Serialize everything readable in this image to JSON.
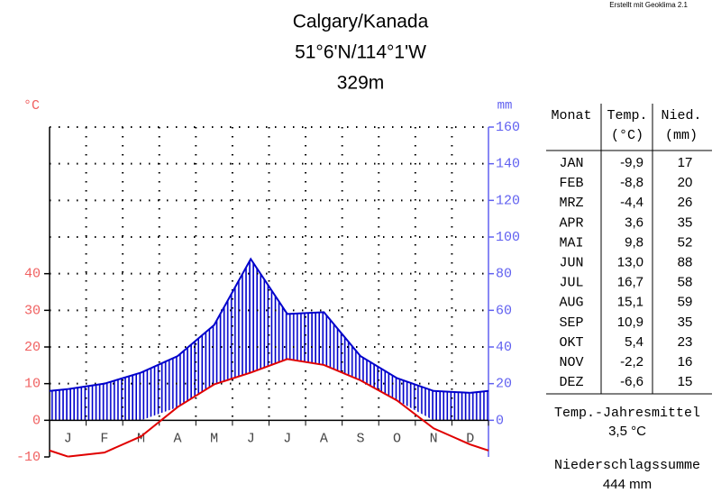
{
  "chart_data": {
    "type": "climate",
    "title": "Calgary/Kanada",
    "subtitle": [
      "51°6'N/114°1'W",
      "329m"
    ],
    "credit": "Erstellt mit Geoklima 2.1",
    "y_label": "°C",
    "y2_label": "mm",
    "categories": [
      "J",
      "F",
      "M",
      "A",
      "M",
      "J",
      "J",
      "A",
      "S",
      "O",
      "N",
      "D"
    ],
    "series": [
      {
        "name": "Temp.",
        "color": "#e00000",
        "values": [
          -9.9,
          -8.8,
          -4.4,
          3.6,
          9.8,
          13.0,
          16.7,
          15.1,
          10.9,
          5.4,
          -2.2,
          -6.6
        ],
        "value_labels": [
          "-9,9",
          "-8,8",
          "-4,4",
          "3,6",
          "9,8",
          "13,0",
          "16,7",
          "15,1",
          "10,9",
          "5,4",
          "-2,2",
          "-6,6"
        ]
      },
      {
        "name": "Nied.",
        "color": "#0000cc",
        "axis": "y2",
        "values": [
          17,
          20,
          26,
          35,
          52,
          88,
          58,
          59,
          35,
          23,
          16,
          15
        ]
      }
    ],
    "ylim": [
      -10,
      80
    ],
    "yticks": [
      -10,
      0,
      10,
      20,
      30,
      40
    ],
    "ycolor": "#f06060",
    "y2lim": [
      -20,
      160
    ],
    "y2ticks": [
      0,
      20,
      40,
      60,
      80,
      100,
      120,
      140,
      160
    ],
    "y2color": "#6060f0",
    "grid": true
  },
  "table": {
    "headers": [
      "Monat",
      "Temp.",
      "(°C)",
      "Nied.",
      "(mm)"
    ],
    "months": [
      "JAN",
      "FEB",
      "MRZ",
      "APR",
      "MAI",
      "JUN",
      "JUL",
      "AUG",
      "SEP",
      "OKT",
      "NOV",
      "DEZ"
    ],
    "mean_label": "Temp.-Jahresmittel",
    "mean_value": "3,5 °C",
    "sum_label": "Niederschlagssumme",
    "sum_value": "444 mm"
  }
}
